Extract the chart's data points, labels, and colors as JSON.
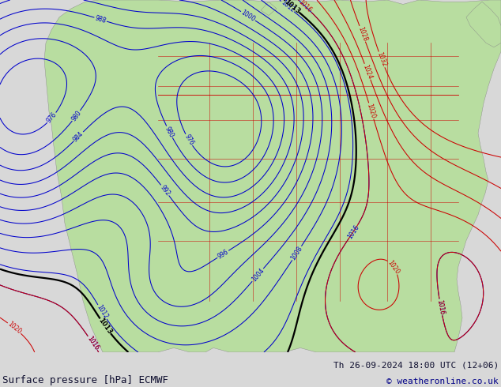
{
  "title_left": "Surface pressure [hPa] ECMWF",
  "title_right": "Th 26-09-2024 18:00 UTC (12+06)",
  "copyright": "© weatheronline.co.uk",
  "bg_color": "#d8d8d8",
  "land_color": "#b8dda0",
  "sea_color": "#c8d8e8",
  "title_color": "#101030",
  "copyright_color": "#000088",
  "font_size_title": 9,
  "font_size_footer": 8,
  "font_size_copyright": 8
}
